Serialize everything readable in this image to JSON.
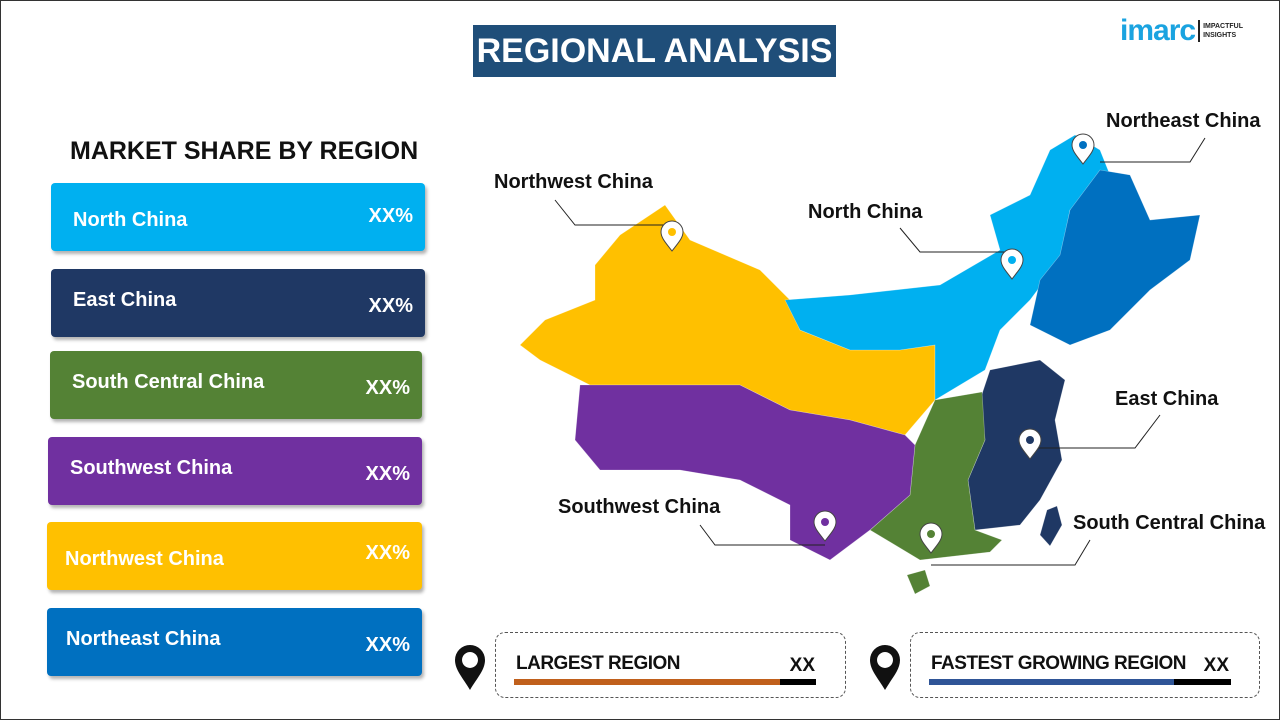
{
  "title": "REGIONAL ANALYSIS",
  "logo": {
    "brand": "imarc",
    "tagline_1": "IMPACTFUL",
    "tagline_2": "INSIGHTS"
  },
  "subtitle": "MARKET SHARE BY REGION",
  "regions": [
    {
      "name": "North China",
      "value": "XX%",
      "color": "#00b0f0"
    },
    {
      "name": "East China",
      "value": "XX%",
      "color": "#1f3864"
    },
    {
      "name": "South Central China",
      "value": "XX%",
      "color": "#548235"
    },
    {
      "name": "Southwest China",
      "value": "XX%",
      "color": "#7030a0"
    },
    {
      "name": "Northwest China",
      "value": "XX%",
      "color": "#ffc000"
    },
    {
      "name": "Northeast China",
      "value": "XX%",
      "color": "#0070c0"
    }
  ],
  "map_labels": {
    "northeast": "Northeast China",
    "northwest": "Northwest China",
    "north": "North China",
    "east": "East China",
    "southwest": "Southwest China",
    "south_central": "South Central China"
  },
  "largest": {
    "label": "LARGEST REGION",
    "value": "XX",
    "bar_color": "#c0601c",
    "fill_percent": 88
  },
  "fastest": {
    "label": "FASTEST GROWING REGION",
    "value": "XX",
    "bar_color": "#2f5597",
    "fill_percent": 81
  }
}
